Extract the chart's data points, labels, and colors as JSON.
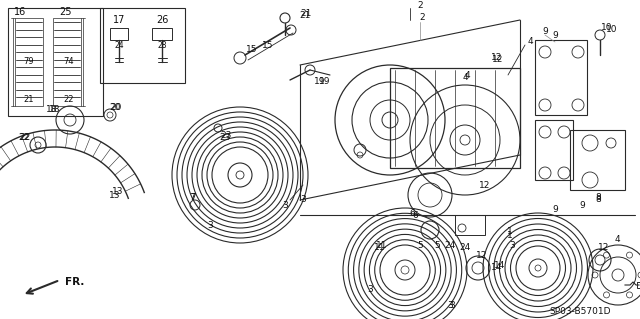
{
  "bg_color": "#ffffff",
  "diagram_code": "SP03-B5701D",
  "line_color": "#2a2a2a",
  "text_color": "#111111",
  "fig_w": 6.4,
  "fig_h": 3.19,
  "dpi": 100
}
